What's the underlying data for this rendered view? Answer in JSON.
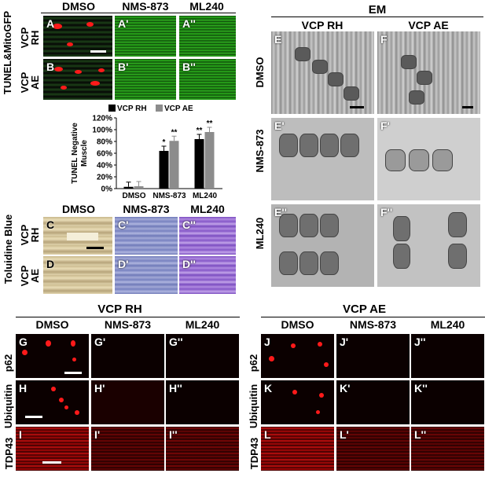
{
  "top_left": {
    "col_headers": [
      "DMSO",
      "NMS-873",
      "ML240"
    ],
    "side_label": "TUNEL&MitoGFP",
    "row_labels": [
      "VCP\nRH",
      "VCP\nAE"
    ],
    "panel_labels": [
      "A",
      "A'",
      "A''",
      "B",
      "B'",
      "B''"
    ]
  },
  "em": {
    "title": "EM",
    "col_headers": [
      "VCP RH",
      "VCP AE"
    ],
    "row_labels": [
      "DMSO",
      "NMS-873",
      "ML240"
    ],
    "panel_labels": [
      "E",
      "F",
      "E'",
      "F'",
      "E''",
      "F''"
    ]
  },
  "chart_data": {
    "type": "bar",
    "categories": [
      "DMSO",
      "NMS-873",
      "ML240"
    ],
    "series": [
      {
        "name": "VCP RH",
        "values": [
          3,
          64,
          84
        ],
        "color": "#000000",
        "sig": [
          "",
          "*",
          "**"
        ]
      },
      {
        "name": "VCP AE",
        "values": [
          4,
          81,
          96
        ],
        "color": "#8c8c8c",
        "sig": [
          "",
          "**",
          "**"
        ]
      }
    ],
    "ylabel": "TUNEL Negative\nMuscle",
    "ylim": [
      0,
      120
    ],
    "yticks": [
      "0%",
      "20%",
      "40%",
      "60%",
      "80%",
      "100%",
      "120%"
    ]
  },
  "toluidine": {
    "col_headers": [
      "DMSO",
      "NMS-873",
      "ML240"
    ],
    "side_label": "Toluidine Blue",
    "row_labels": [
      "VCP\nRH",
      "VCP\nAE"
    ],
    "panel_labels": [
      "C",
      "C'",
      "C''",
      "D",
      "D'",
      "D''"
    ]
  },
  "bottom": {
    "group_titles": [
      "VCP RH",
      "VCP AE"
    ],
    "col_headers": [
      "DMSO",
      "NMS-873",
      "ML240"
    ],
    "row_labels": [
      "p62",
      "Ubiquitin",
      "TDP43"
    ],
    "rh_labels": [
      "G",
      "G'",
      "G''",
      "H",
      "H'",
      "H''",
      "I",
      "I'",
      "I''"
    ],
    "ae_labels": [
      "J",
      "J'",
      "J''",
      "K",
      "K'",
      "K''",
      "L",
      "L'",
      "L''"
    ]
  }
}
